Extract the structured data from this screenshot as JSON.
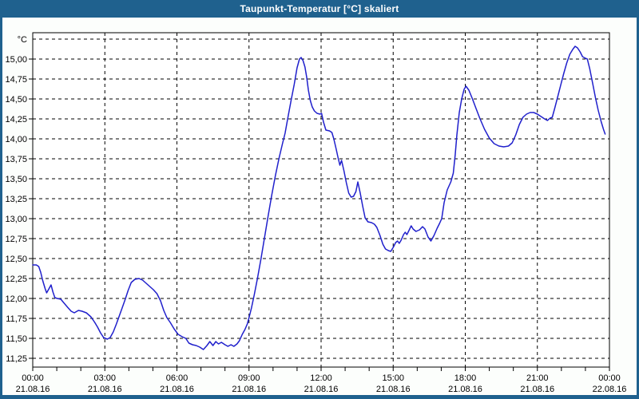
{
  "window": {
    "title": "Taupunkt-Temperatur [°C] skaliert"
  },
  "colors": {
    "titlebar_bg": "#1F618E",
    "frame": "#1F618E",
    "content_bg": "#FCFEFC",
    "plot_bg": "#FFFFFF",
    "grid": "#000000",
    "axis": "#000000",
    "text": "#000000",
    "title_text": "#FFFFFF",
    "line": "#2020CC"
  },
  "chart_data": {
    "type": "line",
    "title": "Taupunkt-Temperatur [°C] skaliert",
    "unit_label": "°C",
    "grid": "dashed",
    "legend_position": "none",
    "x_axis": {
      "range_hours": [
        0,
        24
      ],
      "minor_tick_interval_h": 1,
      "gridline_interval_h": 3,
      "labels": [
        {
          "h": 0,
          "time": "00:00",
          "date": "21.08.16"
        },
        {
          "h": 3,
          "time": "03:00",
          "date": "21.08.16"
        },
        {
          "h": 6,
          "time": "06:00",
          "date": "21.08.16"
        },
        {
          "h": 9,
          "time": "09:00",
          "date": "21.08.16"
        },
        {
          "h": 12,
          "time": "12:00",
          "date": "21.08.16"
        },
        {
          "h": 15,
          "time": "15:00",
          "date": "21.08.16"
        },
        {
          "h": 18,
          "time": "18:00",
          "date": "21.08.16"
        },
        {
          "h": 21,
          "time": "21:00",
          "date": "21.08.16"
        },
        {
          "h": 24,
          "time": "00:00",
          "date": "22.08.16"
        }
      ]
    },
    "y_axis": {
      "unit": "°C",
      "label_min": 11.25,
      "label_max": 15.0,
      "step": 0.25,
      "grid_extends_to": 15.25,
      "plot_value_range": [
        11.14,
        15.33
      ],
      "ticks": [
        {
          "v": 15.0,
          "label": "15,00"
        },
        {
          "v": 14.75,
          "label": "14,75"
        },
        {
          "v": 14.5,
          "label": "14,50"
        },
        {
          "v": 14.25,
          "label": "14,25"
        },
        {
          "v": 14.0,
          "label": "14,00"
        },
        {
          "v": 13.75,
          "label": "13,75"
        },
        {
          "v": 13.5,
          "label": "13,50"
        },
        {
          "v": 13.25,
          "label": "13,25"
        },
        {
          "v": 13.0,
          "label": "13,00"
        },
        {
          "v": 12.75,
          "label": "12,75"
        },
        {
          "v": 12.5,
          "label": "12,50"
        },
        {
          "v": 12.25,
          "label": "12,25"
        },
        {
          "v": 12.0,
          "label": "12,00"
        },
        {
          "v": 11.75,
          "label": "11,75"
        },
        {
          "v": 11.5,
          "label": "11,50"
        },
        {
          "v": 11.25,
          "label": "11,25"
        }
      ]
    },
    "series": [
      {
        "name": "Taupunkt-Temperatur",
        "color": "#2020CC",
        "points": [
          [
            0.0,
            12.42
          ],
          [
            0.15,
            12.42
          ],
          [
            0.25,
            12.4
          ],
          [
            0.33,
            12.33
          ],
          [
            0.42,
            12.22
          ],
          [
            0.52,
            12.12
          ],
          [
            0.58,
            12.07
          ],
          [
            0.67,
            12.12
          ],
          [
            0.76,
            12.17
          ],
          [
            0.84,
            12.08
          ],
          [
            0.92,
            12.01
          ],
          [
            1.02,
            12.0
          ],
          [
            1.17,
            11.99
          ],
          [
            1.28,
            11.95
          ],
          [
            1.45,
            11.89
          ],
          [
            1.6,
            11.84
          ],
          [
            1.73,
            11.82
          ],
          [
            1.9,
            11.85
          ],
          [
            2.05,
            11.84
          ],
          [
            2.23,
            11.82
          ],
          [
            2.42,
            11.77
          ],
          [
            2.58,
            11.7
          ],
          [
            2.7,
            11.64
          ],
          [
            2.82,
            11.57
          ],
          [
            2.95,
            11.51
          ],
          [
            3.1,
            11.49
          ],
          [
            3.22,
            11.51
          ],
          [
            3.35,
            11.58
          ],
          [
            3.48,
            11.68
          ],
          [
            3.6,
            11.78
          ],
          [
            3.72,
            11.88
          ],
          [
            3.85,
            11.99
          ],
          [
            3.97,
            12.1
          ],
          [
            4.1,
            12.2
          ],
          [
            4.25,
            12.24
          ],
          [
            4.42,
            12.25
          ],
          [
            4.57,
            12.23
          ],
          [
            4.72,
            12.19
          ],
          [
            4.87,
            12.15
          ],
          [
            5.02,
            12.11
          ],
          [
            5.17,
            12.06
          ],
          [
            5.32,
            11.97
          ],
          [
            5.45,
            11.85
          ],
          [
            5.58,
            11.76
          ],
          [
            5.72,
            11.7
          ],
          [
            5.88,
            11.62
          ],
          [
            6.05,
            11.55
          ],
          [
            6.22,
            11.52
          ],
          [
            6.37,
            11.5
          ],
          [
            6.5,
            11.44
          ],
          [
            6.65,
            11.42
          ],
          [
            6.8,
            11.41
          ],
          [
            6.95,
            11.39
          ],
          [
            7.1,
            11.36
          ],
          [
            7.25,
            11.41
          ],
          [
            7.37,
            11.46
          ],
          [
            7.5,
            11.41
          ],
          [
            7.62,
            11.46
          ],
          [
            7.73,
            11.43
          ],
          [
            7.85,
            11.45
          ],
          [
            8.0,
            11.42
          ],
          [
            8.12,
            11.4
          ],
          [
            8.25,
            11.42
          ],
          [
            8.37,
            11.4
          ],
          [
            8.5,
            11.43
          ],
          [
            8.6,
            11.47
          ],
          [
            8.72,
            11.55
          ],
          [
            8.83,
            11.61
          ],
          [
            8.93,
            11.68
          ],
          [
            9.0,
            11.76
          ],
          [
            9.1,
            11.88
          ],
          [
            9.22,
            12.05
          ],
          [
            9.35,
            12.25
          ],
          [
            9.5,
            12.5
          ],
          [
            9.65,
            12.77
          ],
          [
            9.8,
            13.04
          ],
          [
            9.95,
            13.3
          ],
          [
            10.1,
            13.54
          ],
          [
            10.25,
            13.76
          ],
          [
            10.4,
            13.95
          ],
          [
            10.5,
            14.07
          ],
          [
            10.62,
            14.27
          ],
          [
            10.75,
            14.48
          ],
          [
            10.88,
            14.68
          ],
          [
            11.0,
            14.89
          ],
          [
            11.1,
            15.0
          ],
          [
            11.17,
            15.02
          ],
          [
            11.25,
            14.98
          ],
          [
            11.33,
            14.9
          ],
          [
            11.4,
            14.77
          ],
          [
            11.47,
            14.61
          ],
          [
            11.55,
            14.48
          ],
          [
            11.63,
            14.4
          ],
          [
            11.72,
            14.35
          ],
          [
            11.83,
            14.32
          ],
          [
            11.95,
            14.31
          ],
          [
            12.02,
            14.32
          ],
          [
            12.1,
            14.21
          ],
          [
            12.2,
            14.11
          ],
          [
            12.35,
            14.1
          ],
          [
            12.45,
            14.08
          ],
          [
            12.53,
            14.0
          ],
          [
            12.62,
            13.88
          ],
          [
            12.7,
            13.77
          ],
          [
            12.78,
            13.67
          ],
          [
            12.85,
            13.73
          ],
          [
            12.95,
            13.6
          ],
          [
            13.05,
            13.45
          ],
          [
            13.15,
            13.32
          ],
          [
            13.25,
            13.27
          ],
          [
            13.35,
            13.28
          ],
          [
            13.45,
            13.34
          ],
          [
            13.53,
            13.46
          ],
          [
            13.63,
            13.32
          ],
          [
            13.73,
            13.16
          ],
          [
            13.83,
            13.01
          ],
          [
            13.95,
            12.96
          ],
          [
            14.1,
            12.95
          ],
          [
            14.22,
            12.93
          ],
          [
            14.32,
            12.89
          ],
          [
            14.45,
            12.79
          ],
          [
            14.57,
            12.68
          ],
          [
            14.68,
            12.62
          ],
          [
            14.8,
            12.6
          ],
          [
            14.9,
            12.59
          ],
          [
            15.0,
            12.64
          ],
          [
            15.1,
            12.7
          ],
          [
            15.18,
            12.72
          ],
          [
            15.25,
            12.69
          ],
          [
            15.33,
            12.73
          ],
          [
            15.43,
            12.8
          ],
          [
            15.5,
            12.83
          ],
          [
            15.57,
            12.8
          ],
          [
            15.67,
            12.86
          ],
          [
            15.75,
            12.91
          ],
          [
            15.83,
            12.87
          ],
          [
            15.95,
            12.84
          ],
          [
            16.1,
            12.86
          ],
          [
            16.22,
            12.9
          ],
          [
            16.32,
            12.87
          ],
          [
            16.45,
            12.77
          ],
          [
            16.57,
            12.72
          ],
          [
            16.7,
            12.79
          ],
          [
            16.83,
            12.88
          ],
          [
            16.93,
            12.94
          ],
          [
            17.02,
            13.0
          ],
          [
            17.12,
            13.2
          ],
          [
            17.25,
            13.36
          ],
          [
            17.4,
            13.46
          ],
          [
            17.5,
            13.57
          ],
          [
            17.58,
            13.8
          ],
          [
            17.65,
            14.05
          ],
          [
            17.75,
            14.33
          ],
          [
            17.85,
            14.5
          ],
          [
            17.95,
            14.62
          ],
          [
            18.03,
            14.66
          ],
          [
            18.15,
            14.61
          ],
          [
            18.3,
            14.5
          ],
          [
            18.45,
            14.38
          ],
          [
            18.6,
            14.26
          ],
          [
            18.8,
            14.12
          ],
          [
            19.0,
            14.01
          ],
          [
            19.2,
            13.94
          ],
          [
            19.4,
            13.91
          ],
          [
            19.6,
            13.9
          ],
          [
            19.8,
            13.91
          ],
          [
            19.95,
            13.95
          ],
          [
            20.1,
            14.05
          ],
          [
            20.25,
            14.18
          ],
          [
            20.4,
            14.27
          ],
          [
            20.55,
            14.31
          ],
          [
            20.7,
            14.33
          ],
          [
            20.85,
            14.33
          ],
          [
            21.0,
            14.31
          ],
          [
            21.15,
            14.28
          ],
          [
            21.3,
            14.25
          ],
          [
            21.42,
            14.23
          ],
          [
            21.53,
            14.26
          ],
          [
            21.62,
            14.27
          ],
          [
            21.72,
            14.38
          ],
          [
            21.85,
            14.53
          ],
          [
            21.97,
            14.67
          ],
          [
            22.1,
            14.82
          ],
          [
            22.22,
            14.95
          ],
          [
            22.35,
            15.06
          ],
          [
            22.47,
            15.12
          ],
          [
            22.57,
            15.16
          ],
          [
            22.67,
            15.14
          ],
          [
            22.78,
            15.09
          ],
          [
            22.88,
            15.03
          ],
          [
            23.0,
            15.01
          ],
          [
            23.08,
            15.0
          ],
          [
            23.18,
            14.88
          ],
          [
            23.3,
            14.7
          ],
          [
            23.42,
            14.51
          ],
          [
            23.53,
            14.36
          ],
          [
            23.65,
            14.22
          ],
          [
            23.75,
            14.12
          ],
          [
            23.82,
            14.06
          ]
        ]
      }
    ]
  }
}
